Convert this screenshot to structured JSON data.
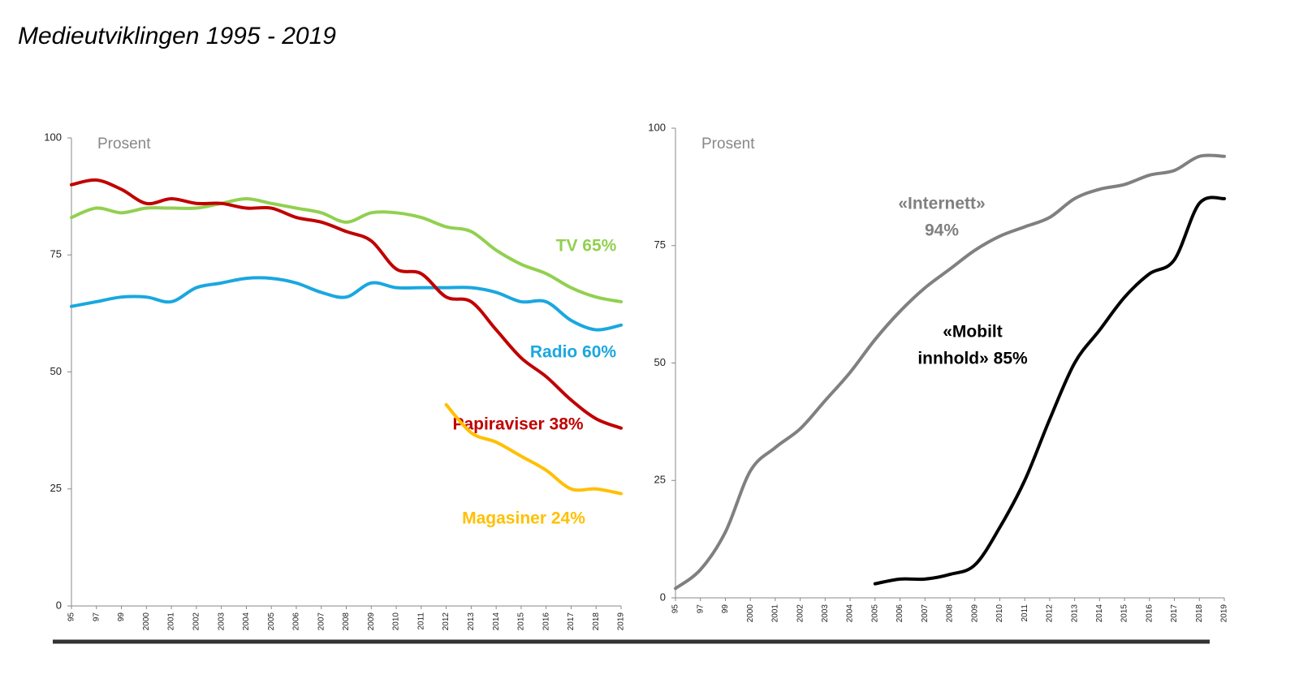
{
  "title": "Medieutviklingen 1995 - 2019",
  "chart_data": [
    {
      "type": "line",
      "unit_label": "Prosent",
      "categories": [
        "95",
        "97",
        "99",
        "2000",
        "2001",
        "2002",
        "2003",
        "2004",
        "2005",
        "2006",
        "2007",
        "2008",
        "2009",
        "2010",
        "2011",
        "2012",
        "2013",
        "2014",
        "2015",
        "2016",
        "2017",
        "2018",
        "2019"
      ],
      "ylim": [
        0,
        100
      ],
      "yticks": [
        0,
        25,
        50,
        75,
        100
      ],
      "series": [
        {
          "label": [
            "TV 65%"
          ],
          "color": "#92d050",
          "values": [
            83,
            85,
            84,
            85,
            85,
            85,
            86,
            87,
            86,
            85,
            84,
            82,
            84,
            84,
            83,
            81,
            80,
            76,
            73,
            71,
            68,
            66,
            65
          ]
        },
        {
          "label": [
            "Radio 60%"
          ],
          "color": "#1aa7e0",
          "values": [
            64,
            65,
            66,
            66,
            65,
            68,
            69,
            70,
            70,
            69,
            67,
            66,
            69,
            68,
            68,
            68,
            68,
            67,
            65,
            65,
            61,
            59,
            60
          ]
        },
        {
          "label": [
            "Papiraviser 38%"
          ],
          "color": "#c00000",
          "values": [
            90,
            91,
            89,
            86,
            87,
            86,
            86,
            85,
            85,
            83,
            82,
            80,
            78,
            72,
            71,
            66,
            65,
            59,
            53,
            49,
            44,
            40,
            38
          ]
        },
        {
          "label": [
            "Magasiner 24%"
          ],
          "color": "#ffc000",
          "values": [
            null,
            null,
            null,
            null,
            null,
            null,
            null,
            null,
            null,
            null,
            null,
            null,
            null,
            null,
            null,
            43,
            37,
            35,
            32,
            29,
            25,
            25,
            24
          ]
        }
      ]
    },
    {
      "type": "line",
      "unit_label": "Prosent",
      "categories": [
        "95",
        "97",
        "99",
        "2000",
        "2001",
        "2002",
        "2003",
        "2004",
        "2005",
        "2006",
        "2007",
        "2008",
        "2009",
        "2010",
        "2011",
        "2012",
        "2013",
        "2014",
        "2015",
        "2016",
        "2017",
        "2018",
        "2019"
      ],
      "ylim": [
        0,
        100
      ],
      "yticks": [
        0,
        25,
        50,
        75,
        100
      ],
      "series": [
        {
          "label": [
            "«Internett»",
            "94%"
          ],
          "color": "#808080",
          "values": [
            2,
            6,
            14,
            27,
            32,
            36,
            42,
            48,
            55,
            61,
            66,
            70,
            74,
            77,
            79,
            81,
            85,
            87,
            88,
            90,
            91,
            94,
            94
          ]
        },
        {
          "label": [
            "«Mobilt",
            "innhold» 85%"
          ],
          "color": "#000000",
          "values": [
            null,
            null,
            null,
            null,
            null,
            null,
            null,
            null,
            3,
            4,
            4,
            5,
            7,
            15,
            25,
            38,
            50,
            57,
            64,
            69,
            72,
            84,
            85
          ]
        }
      ]
    }
  ]
}
